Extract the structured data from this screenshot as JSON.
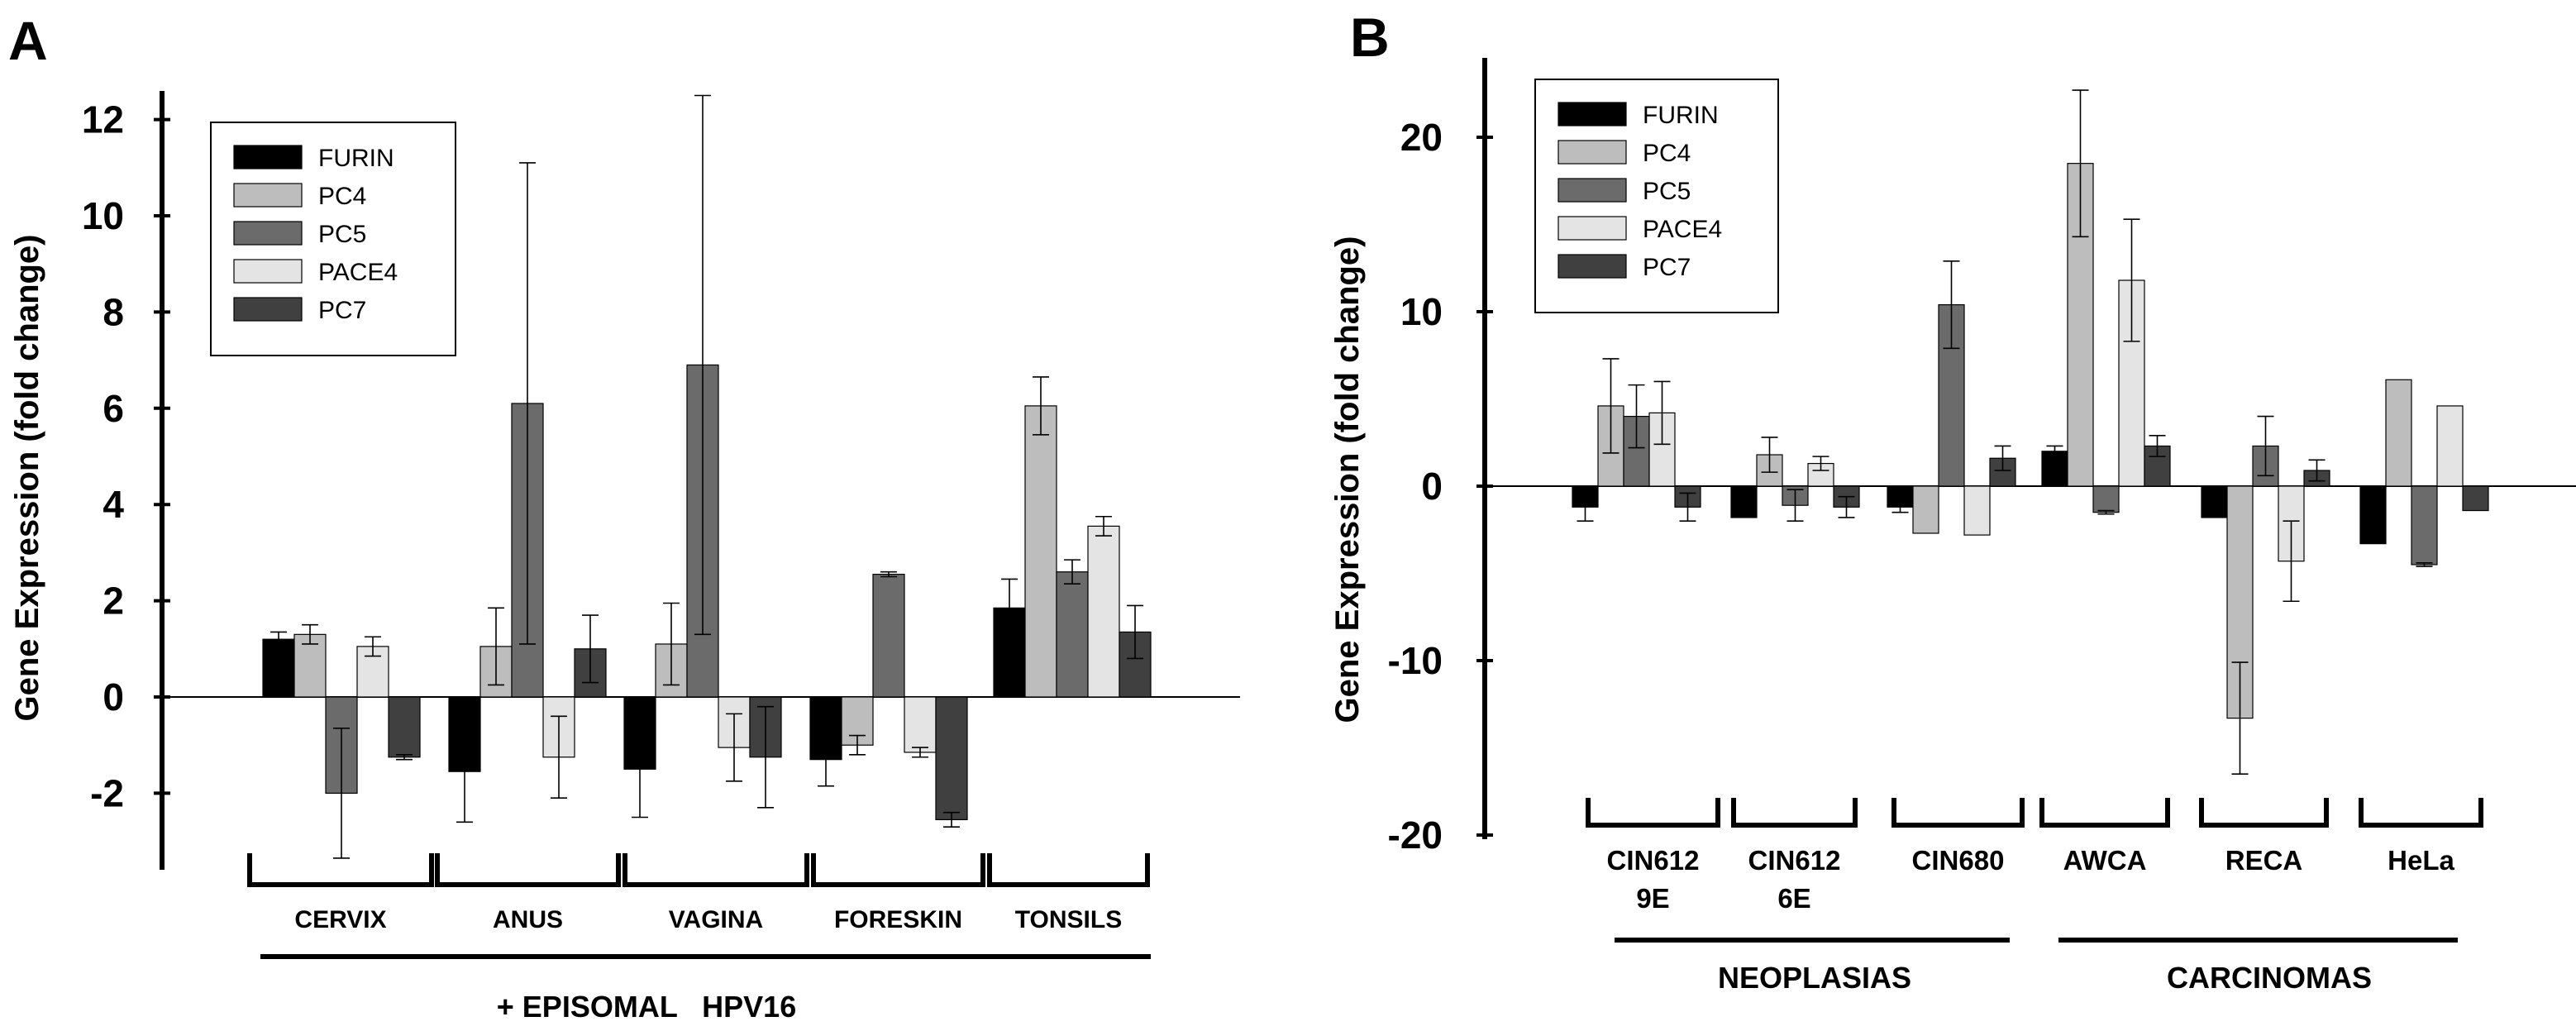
{
  "chart_data": [
    {
      "type": "bar",
      "panel_label": "A",
      "ylabel": "Gene Expression (fold change)",
      "ylim": [
        -3.5,
        12.5
      ],
      "yticks": [
        "-2",
        "0",
        "2",
        "4",
        "6",
        "8",
        "10",
        "12"
      ],
      "ytick_values": [
        -2,
        0,
        2,
        4,
        6,
        8,
        10,
        12
      ],
      "categories": [
        "CERVIX",
        "ANUS",
        "VAGINA",
        "FORESKIN",
        "TONSILS"
      ],
      "group_label": "+ EPISOMAL   HPV16",
      "series": [
        {
          "name": "FURIN",
          "color": "#000000",
          "values": [
            1.2,
            -1.55,
            -1.5,
            -1.3,
            1.85
          ],
          "errors": [
            0.15,
            1.05,
            1.0,
            0.55,
            0.6
          ]
        },
        {
          "name": "PC4",
          "color": "#bdbdbd",
          "values": [
            1.3,
            1.05,
            1.1,
            -1.0,
            6.05
          ],
          "errors": [
            0.2,
            0.8,
            0.85,
            0.2,
            0.6
          ]
        },
        {
          "name": "PC5",
          "color": "#6b6b6b",
          "values": [
            -2.0,
            6.1,
            6.9,
            2.55,
            2.6
          ],
          "errors": [
            1.35,
            5.0,
            5.6,
            0.05,
            0.25
          ]
        },
        {
          "name": "PACE4",
          "color": "#e4e4e4",
          "values": [
            1.05,
            -1.25,
            -1.05,
            -1.15,
            3.55
          ],
          "errors": [
            0.2,
            0.85,
            0.7,
            0.1,
            0.2
          ]
        },
        {
          "name": "PC7",
          "color": "#404040",
          "values": [
            -1.25,
            1.0,
            -1.25,
            -2.55,
            1.35
          ],
          "errors": [
            0.05,
            0.7,
            1.05,
            0.15,
            0.55
          ]
        }
      ]
    },
    {
      "type": "bar",
      "panel_label": "B",
      "ylabel": "Gene Expression (fold change)",
      "ylim": [
        -20,
        23
      ],
      "yticks": [
        "-20",
        "-10",
        "0",
        "10",
        "20"
      ],
      "ytick_values": [
        -20,
        -10,
        0,
        10,
        20
      ],
      "categories": [
        [
          "CIN612",
          "9E"
        ],
        [
          "CIN612",
          "6E"
        ],
        [
          "CIN680"
        ],
        [
          "AWCA"
        ],
        [
          "RECA"
        ],
        [
          "HeLa"
        ]
      ],
      "super_groups": [
        "NEOPLASIAS",
        "CARCINOMAS"
      ],
      "series": [
        {
          "name": "FURIN",
          "color": "#000000",
          "values": [
            -1.2,
            -1.8,
            -1.2,
            2.0,
            -1.8,
            -3.3
          ],
          "errors": [
            0.8,
            0.0,
            0.3,
            0.3,
            0.0,
            0.0
          ]
        },
        {
          "name": "PC4",
          "color": "#bdbdbd",
          "values": [
            4.6,
            1.8,
            -2.7,
            18.5,
            -13.3,
            6.1
          ],
          "errors": [
            2.7,
            1.0,
            0.0,
            4.2,
            3.2,
            0.0
          ]
        },
        {
          "name": "PC5",
          "color": "#6b6b6b",
          "values": [
            4.0,
            -1.1,
            10.4,
            -1.5,
            2.3,
            -4.5
          ],
          "errors": [
            1.8,
            0.9,
            2.5,
            0.1,
            1.7,
            0.1
          ]
        },
        {
          "name": "PACE4",
          "color": "#e4e4e4",
          "values": [
            4.2,
            1.3,
            -2.8,
            11.8,
            -4.3,
            4.6
          ],
          "errors": [
            1.8,
            0.4,
            0.0,
            3.5,
            2.3,
            0.0
          ]
        },
        {
          "name": "PC7",
          "color": "#404040",
          "values": [
            -1.2,
            -1.2,
            1.6,
            2.3,
            0.9,
            -1.4
          ],
          "errors": [
            0.8,
            0.6,
            0.7,
            0.6,
            0.6,
            0.0
          ]
        }
      ]
    }
  ]
}
